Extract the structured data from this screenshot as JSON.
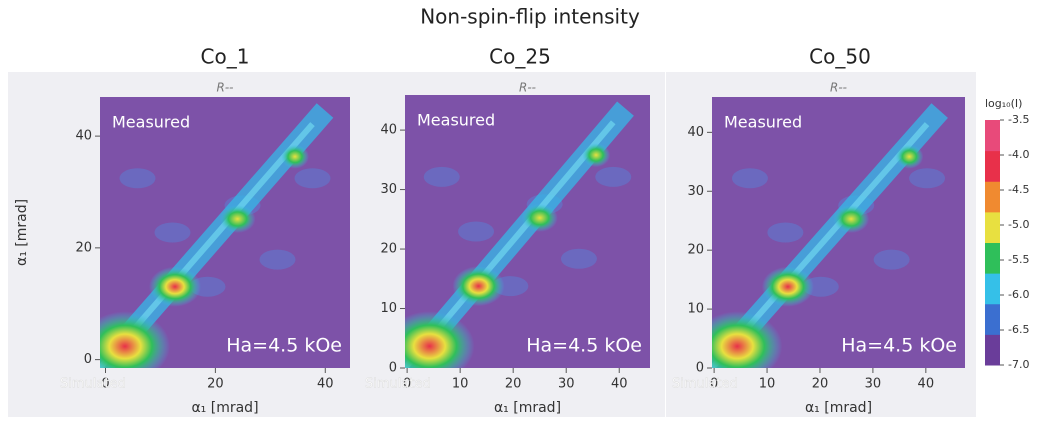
{
  "title": "Non-spin-flip intensity",
  "chart_data": [
    {
      "type": "heatmap",
      "title": "Co_1",
      "subtitle": "R--",
      "annotations": [
        "Measured",
        "Ha=4.5 kOe",
        "Simulated"
      ],
      "xlabel": "α₁ [mrad]",
      "ylabel": "α₁ [mrad]",
      "xlim": [
        -1,
        44.5
      ],
      "ylim": [
        -1.5,
        47
      ],
      "xticks": [
        0,
        20,
        40
      ],
      "yticks": [
        0,
        20,
        40
      ]
    },
    {
      "type": "heatmap",
      "title": "Co_25",
      "subtitle": "R--",
      "annotations": [
        "Measured",
        "Ha=4.5 kOe",
        "Simulated"
      ],
      "xlabel": "α₁ [mrad]",
      "xlim": [
        -0.4,
        45.8
      ],
      "ylim": [
        0,
        45.9
      ],
      "xticks": [
        0,
        10,
        20,
        30,
        40
      ],
      "yticks": [
        0,
        10,
        20,
        30,
        40
      ]
    },
    {
      "type": "heatmap",
      "title": "Co_50",
      "subtitle": "R--",
      "annotations": [
        "Measured",
        "Ha=4.5 kOe",
        "Simulated"
      ],
      "xlabel": "α₁ [mrad]",
      "xlim": [
        -0.4,
        47.4
      ],
      "ylim": [
        0,
        46
      ],
      "xticks": [
        0,
        10,
        20,
        30,
        40
      ],
      "yticks": [
        0,
        10,
        20,
        30,
        40
      ]
    },
    {
      "type": "colorbar",
      "title": "log₁₀(I)",
      "ylim": [
        -7.0,
        -3.5
      ],
      "colors": [
        "#6a3d9a",
        "#3b6fd0",
        "#35c0e8",
        "#2fbf5a",
        "#e8e040",
        "#f08a30",
        "#e8304a",
        "#e84a7a"
      ],
      "yticks": [
        {
          "value": -3.5,
          "label": "-3.5"
        },
        {
          "value": -4,
          "label": "-4.0"
        },
        {
          "value": -4.5,
          "label": "-4.5"
        },
        {
          "value": -5,
          "label": "-5.0"
        },
        {
          "value": -5.5,
          "label": "-5.5"
        },
        {
          "value": -6,
          "label": "-6.0"
        },
        {
          "value": -6.5,
          "label": "-6.5"
        },
        {
          "value": -7,
          "label": "-7.0"
        }
      ]
    }
  ]
}
